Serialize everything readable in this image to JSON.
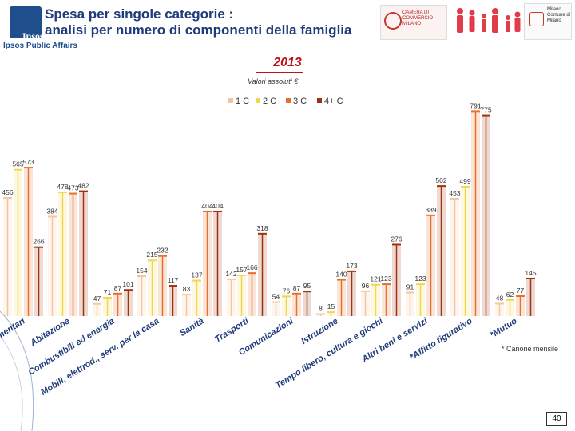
{
  "header": {
    "title_line1": "Spesa per singole categorie :",
    "title_line2": "analisi per numero di componenti della famiglia",
    "logo_brand": "Ipsos",
    "logo_sub": "Ipsos Public Affairs",
    "partner1": "CAMERA DI COMMERCIO MILANO",
    "partner2": "Milano Comune di Milano"
  },
  "year": "2013",
  "subtitle": "Valori assoluti €",
  "footnote": "* Canone mensile",
  "page_number": "40",
  "colors": {
    "series_1": "#f4c6a0",
    "series_2": "#f2d650",
    "series_3": "#e8702a",
    "series_4": "#a0320c",
    "label": "#333333",
    "axis_label": "#1f3b7a",
    "marker_red": "#c0101a"
  },
  "chart_data": {
    "type": "bar",
    "title": "2013",
    "subtitle": "Valori assoluti €",
    "legend": [
      "1 C",
      "2 C",
      "3 C",
      "4+ C"
    ],
    "legend_position": "top-center",
    "ylim": [
      0,
      900
    ],
    "categories": [
      "Alimentari",
      "Abitazione",
      "Combustibili ed energia",
      "Mobili, elettrod., serv. per la casa",
      "Sanità",
      "Trasporti",
      "Comunicazioni",
      "Istruzione",
      "Tempo libero, cultura e giochi",
      "Altri beni e servizi",
      "*Affitto figurativo",
      "*Mutuo"
    ],
    "category_display": [
      "mentari",
      "Abitazione",
      "Combustibili ed energia",
      "Mobili, elettrod., serv. per la casa",
      "Sanità",
      "Trasporti",
      "Comunicazioni",
      "Istruzione",
      "Tempo libero, cultura e giochi",
      "Altri beni e servizi",
      "*Affitto figurativo",
      "*Mutuo"
    ],
    "series": [
      {
        "name": "1 C",
        "values": [
          456,
          384,
          47,
          154,
          83,
          142,
          54,
          8,
          96,
          91,
          453,
          48
        ]
      },
      {
        "name": "2 C",
        "values": [
          565,
          478,
          71,
          215,
          137,
          157,
          76,
          15,
          121,
          123,
          499,
          62
        ]
      },
      {
        "name": "3 C",
        "values": [
          573,
          473,
          87,
          232,
          404,
          166,
          87,
          140,
          123,
          389,
          791,
          77
        ]
      },
      {
        "name": "4+ C",
        "values": [
          266,
          482,
          101,
          117,
          404,
          318,
          95,
          173,
          276,
          502,
          775,
          145
        ]
      }
    ]
  }
}
